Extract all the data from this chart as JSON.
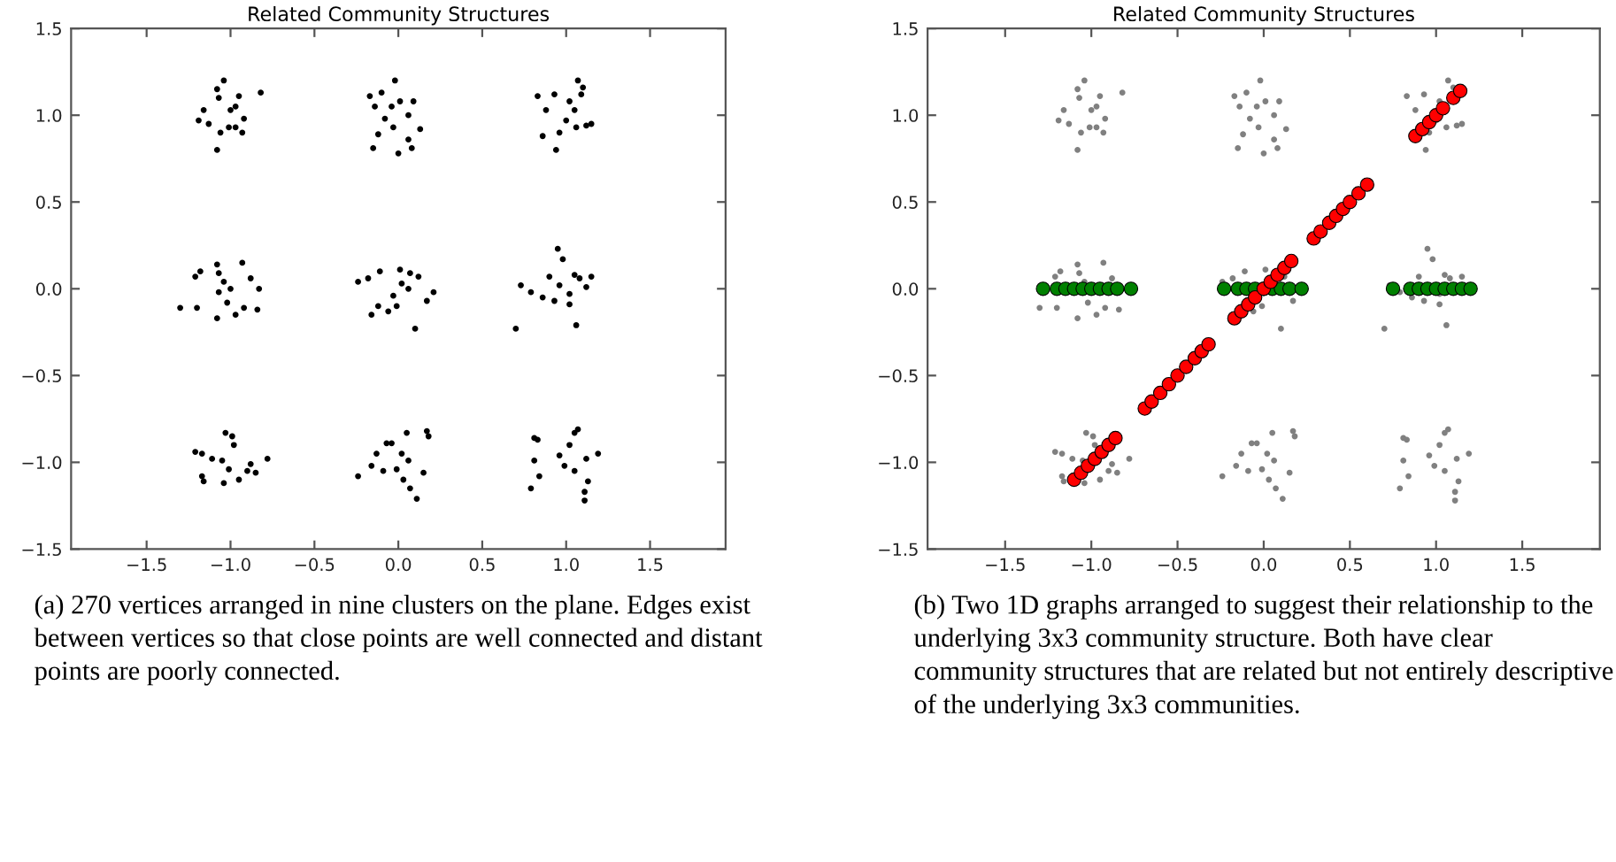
{
  "chart_data": [
    {
      "type": "scatter",
      "title": "Related Community Structures",
      "xlim": [
        -1.95,
        1.95
      ],
      "ylim": [
        -1.5,
        1.5
      ],
      "xticks": [
        {
          "value": -1.5,
          "label": "−1.5"
        },
        {
          "value": -1.0,
          "label": "−1.0"
        },
        {
          "value": -0.5,
          "label": "−0.5"
        },
        {
          "value": 0.0,
          "label": "0.0"
        },
        {
          "value": 0.5,
          "label": "0.5"
        },
        {
          "value": 1.0,
          "label": "1.0"
        },
        {
          "value": 1.5,
          "label": "1.5"
        }
      ],
      "yticks": [
        {
          "value": -1.5,
          "label": "−1.5"
        },
        {
          "value": -1.0,
          "label": "−1.0"
        },
        {
          "value": -0.5,
          "label": "−0.5"
        },
        {
          "value": 0.0,
          "label": "0.0"
        },
        {
          "value": 0.5,
          "label": "0.5"
        },
        {
          "value": 1.0,
          "label": "1.0"
        },
        {
          "value": 1.5,
          "label": "1.5"
        }
      ],
      "marker": "circle",
      "annotations": [
        "(a) 270 vertices arranged in nine clusters on the plane. Edges exist between vertices so that close points are well connected and distant points are poorly connected."
      ],
      "series": [
        {
          "color": "#000000",
          "x": [
            -1.04,
            -1.08,
            -0.82,
            -1.16,
            -1.19,
            -1.13,
            -1.07,
            -1.0,
            -0.97,
            -0.92,
            -1.06,
            -1.08,
            -1.01,
            -0.97,
            -0.93,
            -0.95,
            -0.02,
            -0.1,
            -0.17,
            -0.14,
            -0.04,
            0.01,
            0.09,
            0.06,
            -0.08,
            -0.12,
            -0.03,
            0.13,
            0.06,
            -0.15,
            0.0,
            0.08,
            1.07,
            1.1,
            0.83,
            0.93,
            0.88,
            1.02,
            1.05,
            1.09,
            1.0,
            1.15,
            1.12,
            0.86,
            0.96,
            0.94,
            1.06,
            -1.3,
            -1.2,
            -1.21,
            -1.18,
            -1.08,
            -1.07,
            -1.04,
            -1.07,
            -1.0,
            -0.93,
            -0.88,
            -0.83,
            -0.84,
            -0.97,
            -1.08,
            -0.92,
            -1.02,
            -0.24,
            -0.18,
            -0.11,
            0.01,
            0.07,
            0.12,
            0.21,
            0.17,
            0.1,
            -0.16,
            -0.12,
            -0.06,
            -0.03,
            0.06,
            0.02,
            -0.01,
            0.95,
            0.98,
            0.73,
            0.79,
            0.7,
            0.9,
            0.86,
            0.93,
            1.02,
            1.05,
            1.15,
            1.12,
            1.06,
            1.02,
            1.08,
            0.96,
            -1.03,
            -0.99,
            -0.98,
            -1.21,
            -1.17,
            -1.11,
            -0.78,
            -0.88,
            -1.05,
            -1.01,
            -1.17,
            -1.16,
            -1.04,
            -0.95,
            -0.85,
            -0.9,
            0.18,
            0.17,
            0.05,
            -0.07,
            -0.04,
            -0.13,
            -0.16,
            -0.09,
            -0.24,
            0.02,
            0.06,
            0.15,
            0.03,
            0.07,
            0.11,
            -0.01,
            1.07,
            1.05,
            0.81,
            0.83,
            1.02,
            1.19,
            1.12,
            0.96,
            0.81,
            0.99,
            1.05,
            0.84,
            1.13,
            0.79,
            1.11,
            1.11
          ],
          "values": [
            1.2,
            1.15,
            1.13,
            1.03,
            0.97,
            0.95,
            1.1,
            1.03,
            1.05,
            0.98,
            0.9,
            0.8,
            0.93,
            0.93,
            0.9,
            1.11,
            1.2,
            1.13,
            1.11,
            1.05,
            1.05,
            1.08,
            1.08,
            1.0,
            0.98,
            0.89,
            0.93,
            0.92,
            0.86,
            0.81,
            0.78,
            0.81,
            1.2,
            1.16,
            1.11,
            1.12,
            1.03,
            1.08,
            1.03,
            1.12,
            0.97,
            0.95,
            0.94,
            0.88,
            0.9,
            0.8,
            0.93,
            -0.11,
            -0.11,
            0.07,
            0.1,
            0.14,
            0.09,
            0.04,
            -0.02,
            0.0,
            0.15,
            0.06,
            0.0,
            -0.12,
            -0.15,
            -0.17,
            -0.11,
            -0.08,
            0.04,
            0.06,
            0.1,
            0.11,
            0.09,
            0.07,
            -0.02,
            -0.07,
            -0.23,
            -0.15,
            -0.1,
            -0.13,
            -0.04,
            0.0,
            0.03,
            -0.1,
            0.23,
            0.17,
            0.02,
            -0.02,
            -0.23,
            0.07,
            -0.05,
            -0.07,
            -0.03,
            0.08,
            0.07,
            0.01,
            -0.21,
            -0.09,
            0.06,
            0.02,
            -0.83,
            -0.85,
            -0.9,
            -0.94,
            -0.95,
            -0.98,
            -0.98,
            -1.01,
            -0.99,
            -1.04,
            -1.08,
            -1.11,
            -1.12,
            -1.1,
            -1.06,
            -1.05,
            -0.85,
            -0.82,
            -0.83,
            -0.89,
            -0.89,
            -0.95,
            -1.02,
            -1.05,
            -1.08,
            -0.95,
            -0.99,
            -1.06,
            -1.1,
            -1.15,
            -1.21,
            -1.04,
            -0.81,
            -0.83,
            -0.86,
            -0.87,
            -0.9,
            -0.95,
            -0.98,
            -0.96,
            -0.99,
            -1.02,
            -1.05,
            -1.08,
            -1.11,
            -1.15,
            -1.17,
            -1.22
          ]
        }
      ]
    },
    {
      "type": "scatter",
      "title": "Related Community Structures",
      "xlim": [
        -1.95,
        1.95
      ],
      "ylim": [
        -1.5,
        1.5
      ],
      "xticks": [
        {
          "value": -1.5,
          "label": "−1.5"
        },
        {
          "value": -1.0,
          "label": "−1.0"
        },
        {
          "value": -0.5,
          "label": "−0.5"
        },
        {
          "value": 0.0,
          "label": "0.0"
        },
        {
          "value": 0.5,
          "label": "0.5"
        },
        {
          "value": 1.0,
          "label": "1.0"
        },
        {
          "value": 1.5,
          "label": "1.5"
        }
      ],
      "yticks": [
        {
          "value": -1.5,
          "label": "−1.5"
        },
        {
          "value": -1.0,
          "label": "−1.0"
        },
        {
          "value": -0.5,
          "label": "−0.5"
        },
        {
          "value": 0.0,
          "label": "0.0"
        },
        {
          "value": 0.5,
          "label": "0.5"
        },
        {
          "value": 1.0,
          "label": "1.0"
        },
        {
          "value": 1.5,
          "label": "1.5"
        }
      ],
      "marker": "circle",
      "annotations": [
        "(b) Two 1D graphs arranged to suggest their relationship to the underlying 3x3 community structure. Both have clear community structures that are related but not entirely descriptive of the underlying 3x3 communities."
      ],
      "series": [
        {
          "color": "#808080",
          "x": [
            -1.04,
            -1.08,
            -0.82,
            -1.16,
            -1.19,
            -1.13,
            -1.07,
            -1.0,
            -0.97,
            -0.92,
            -1.06,
            -1.08,
            -1.01,
            -0.97,
            -0.93,
            -0.95,
            -0.02,
            -0.1,
            -0.17,
            -0.14,
            -0.04,
            0.01,
            0.09,
            0.06,
            -0.08,
            -0.12,
            -0.03,
            0.13,
            0.06,
            -0.15,
            0.0,
            0.08,
            1.07,
            1.1,
            0.83,
            0.93,
            0.88,
            1.02,
            1.0,
            1.15,
            1.12,
            0.96,
            0.94,
            1.06,
            -1.3,
            -1.2,
            -1.21,
            -1.18,
            -1.08,
            -1.07,
            -1.04,
            -1.07,
            -0.93,
            -0.88,
            -0.84,
            -0.97,
            -1.08,
            -0.92,
            -1.02,
            -0.24,
            -0.18,
            -0.11,
            0.01,
            0.12,
            0.17,
            0.1,
            -0.06,
            -0.01,
            0.95,
            0.98,
            0.73,
            0.79,
            0.7,
            0.9,
            0.86,
            0.93,
            1.02,
            1.05,
            1.15,
            1.06,
            1.02,
            1.08,
            -1.03,
            -0.99,
            -0.98,
            -1.21,
            -1.17,
            -1.11,
            -0.78,
            -0.88,
            -1.05,
            -1.17,
            -1.16,
            -1.04,
            -0.95,
            -0.85,
            -0.9,
            0.18,
            0.17,
            0.05,
            -0.07,
            -0.04,
            -0.13,
            -0.16,
            -0.09,
            -0.24,
            0.02,
            0.06,
            0.15,
            0.03,
            0.07,
            0.11,
            -0.01,
            1.07,
            1.05,
            0.81,
            0.83,
            1.02,
            1.19,
            1.12,
            0.96,
            0.81,
            0.99,
            1.05,
            0.84,
            1.13,
            0.79,
            1.11,
            1.11
          ],
          "values": [
            1.2,
            1.15,
            1.13,
            1.03,
            0.97,
            0.95,
            1.1,
            1.03,
            1.05,
            0.98,
            0.9,
            0.8,
            0.93,
            0.93,
            0.9,
            1.11,
            1.2,
            1.13,
            1.11,
            1.05,
            1.05,
            1.08,
            1.08,
            1.0,
            0.98,
            0.89,
            0.93,
            0.92,
            0.86,
            0.81,
            0.78,
            0.81,
            1.2,
            1.16,
            1.11,
            1.12,
            1.03,
            1.08,
            0.97,
            0.95,
            0.94,
            0.9,
            0.8,
            0.93,
            -0.11,
            -0.11,
            0.07,
            0.1,
            0.14,
            0.09,
            0.04,
            -0.02,
            0.15,
            0.06,
            -0.12,
            -0.15,
            -0.17,
            -0.11,
            -0.08,
            0.04,
            0.06,
            0.1,
            0.11,
            0.07,
            -0.07,
            -0.23,
            -0.13,
            -0.1,
            0.23,
            0.17,
            0.02,
            -0.02,
            -0.23,
            0.07,
            -0.05,
            -0.07,
            -0.03,
            0.08,
            0.07,
            -0.21,
            -0.09,
            0.06,
            -0.83,
            -0.85,
            -0.9,
            -0.94,
            -0.95,
            -0.98,
            -0.98,
            -1.01,
            -0.99,
            -1.08,
            -1.11,
            -1.12,
            -1.1,
            -1.06,
            -1.05,
            -0.85,
            -0.82,
            -0.83,
            -0.89,
            -0.89,
            -0.95,
            -1.02,
            -1.05,
            -1.08,
            -0.95,
            -0.99,
            -1.06,
            -1.1,
            -1.15,
            -1.21,
            -1.04,
            -0.81,
            -0.83,
            -0.86,
            -0.87,
            -0.9,
            -0.95,
            -0.98,
            -0.96,
            -0.99,
            -1.02,
            -1.05,
            -1.08,
            -1.11,
            -1.15,
            -1.17,
            -1.22
          ]
        },
        {
          "color": "#008000",
          "x": [
            -1.28,
            -1.2,
            -1.15,
            -1.1,
            -1.05,
            -1.0,
            -0.95,
            -0.9,
            -0.85,
            -0.77,
            -0.23,
            -0.15,
            -0.1,
            -0.05,
            0.0,
            0.05,
            0.1,
            0.15,
            0.22,
            0.75,
            0.85,
            0.9,
            0.95,
            1.0,
            1.05,
            1.1,
            1.15,
            1.2
          ],
          "values": [
            0,
            0,
            0,
            0,
            0,
            0,
            0,
            0,
            0,
            0,
            0,
            0,
            0,
            0,
            0,
            0,
            0,
            0,
            0,
            0,
            0,
            0,
            0,
            0,
            0,
            0,
            0,
            0
          ]
        },
        {
          "color": "#ff0000",
          "x": [
            -1.1,
            -1.06,
            -1.02,
            -0.98,
            -0.94,
            -0.9,
            -0.86,
            -0.69,
            -0.65,
            -0.6,
            -0.55,
            -0.5,
            -0.45,
            -0.4,
            -0.36,
            -0.32,
            -0.17,
            -0.13,
            -0.09,
            -0.05,
            0.0,
            0.04,
            0.08,
            0.12,
            0.16,
            0.29,
            0.33,
            0.38,
            0.42,
            0.46,
            0.5,
            0.55,
            0.6,
            0.88,
            0.92,
            0.96,
            1.0,
            1.04,
            1.1,
            1.14
          ],
          "values": [
            -1.1,
            -1.06,
            -1.02,
            -0.98,
            -0.94,
            -0.9,
            -0.86,
            -0.69,
            -0.65,
            -0.6,
            -0.55,
            -0.5,
            -0.45,
            -0.4,
            -0.36,
            -0.32,
            -0.17,
            -0.13,
            -0.09,
            -0.05,
            0.0,
            0.04,
            0.08,
            0.12,
            0.16,
            0.29,
            0.33,
            0.38,
            0.42,
            0.46,
            0.5,
            0.55,
            0.6,
            0.88,
            0.92,
            0.96,
            1.0,
            1.04,
            1.1,
            1.14
          ]
        }
      ]
    }
  ]
}
